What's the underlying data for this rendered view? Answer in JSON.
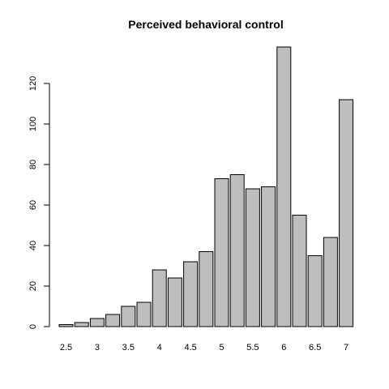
{
  "chart_data": {
    "type": "bar",
    "title": "Perceived behavioral control",
    "xlabel": "",
    "ylabel": "",
    "categories": [
      "2.5",
      "2.67",
      "3",
      "3.33",
      "3.5",
      "3.67",
      "4",
      "4.33",
      "4.5",
      "4.67",
      "5",
      "5.33",
      "5.5",
      "5.67",
      "6",
      "6.33",
      "6.5",
      "6.67",
      "7"
    ],
    "values": [
      1,
      2,
      4,
      6,
      10,
      12,
      28,
      24,
      32,
      37,
      73,
      75,
      68,
      69,
      138,
      55,
      35,
      44,
      112
    ],
    "x_tick_labels": [
      "2.5",
      "3",
      "3.5",
      "4",
      "4.5",
      "5",
      "5.5",
      "6",
      "6.5",
      "7"
    ],
    "labeled_bar_indices": [
      0,
      2,
      4,
      6,
      8,
      10,
      12,
      14,
      16,
      18
    ],
    "y_ticks": [
      0,
      20,
      40,
      60,
      80,
      100,
      120
    ],
    "ylim": [
      0,
      138
    ],
    "grid": false,
    "bar_color": "#bebebe"
  }
}
